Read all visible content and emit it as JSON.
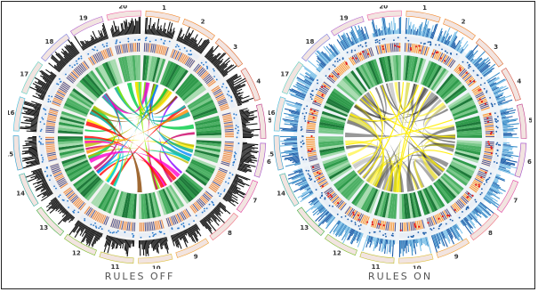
{
  "panels": [
    {
      "caption": "RULES OFF",
      "mode": "off",
      "colors": {
        "histogram": "#111111",
        "ideogram_band": "#e07830",
        "blue_ring": "#2a78c8",
        "heatmap_ring": "#2e9a4a",
        "links": [
          "#ff0000",
          "#ff8800",
          "#ffee00",
          "#88ee00",
          "#00cc44",
          "#00cccc",
          "#0088ff",
          "#3344ff",
          "#8800ff",
          "#ff00cc",
          "#cc0066",
          "#884400",
          "#bbbb00",
          "#00aa88"
        ]
      }
    },
    {
      "caption": "RULES ON",
      "mode": "on",
      "colors": {
        "histogram": "#3a8cc8",
        "ideogram_band": "#f08a20",
        "blue_ring": "#1a5ca8",
        "heatmap_ring": "#2e9a4a",
        "links": [
          "#222222",
          "#444444",
          "#666666",
          "#888888",
          "#aaaaaa",
          "#cccc00",
          "#ffee00",
          "#333333"
        ]
      }
    }
  ],
  "chromosomes": [
    "1",
    "2",
    "3",
    "4",
    "5",
    "6",
    "7",
    "8",
    "9",
    "10",
    "11",
    "12",
    "13",
    "14",
    "15",
    "16",
    "17",
    "18",
    "19",
    "20"
  ],
  "chromosome_colors": [
    "#f28b30",
    "#f28b30",
    "#e06c2c",
    "#d44c3c",
    "#c03c8c",
    "#a04cc8",
    "#e040a0",
    "#f07080",
    "#f0a030",
    "#e0c040",
    "#c0c030",
    "#80c030",
    "#40b040",
    "#30b0a0",
    "#30a0d0",
    "#40c0e0",
    "#60d0c0",
    "#8080e0",
    "#b060d0",
    "#f060a0"
  ]
}
